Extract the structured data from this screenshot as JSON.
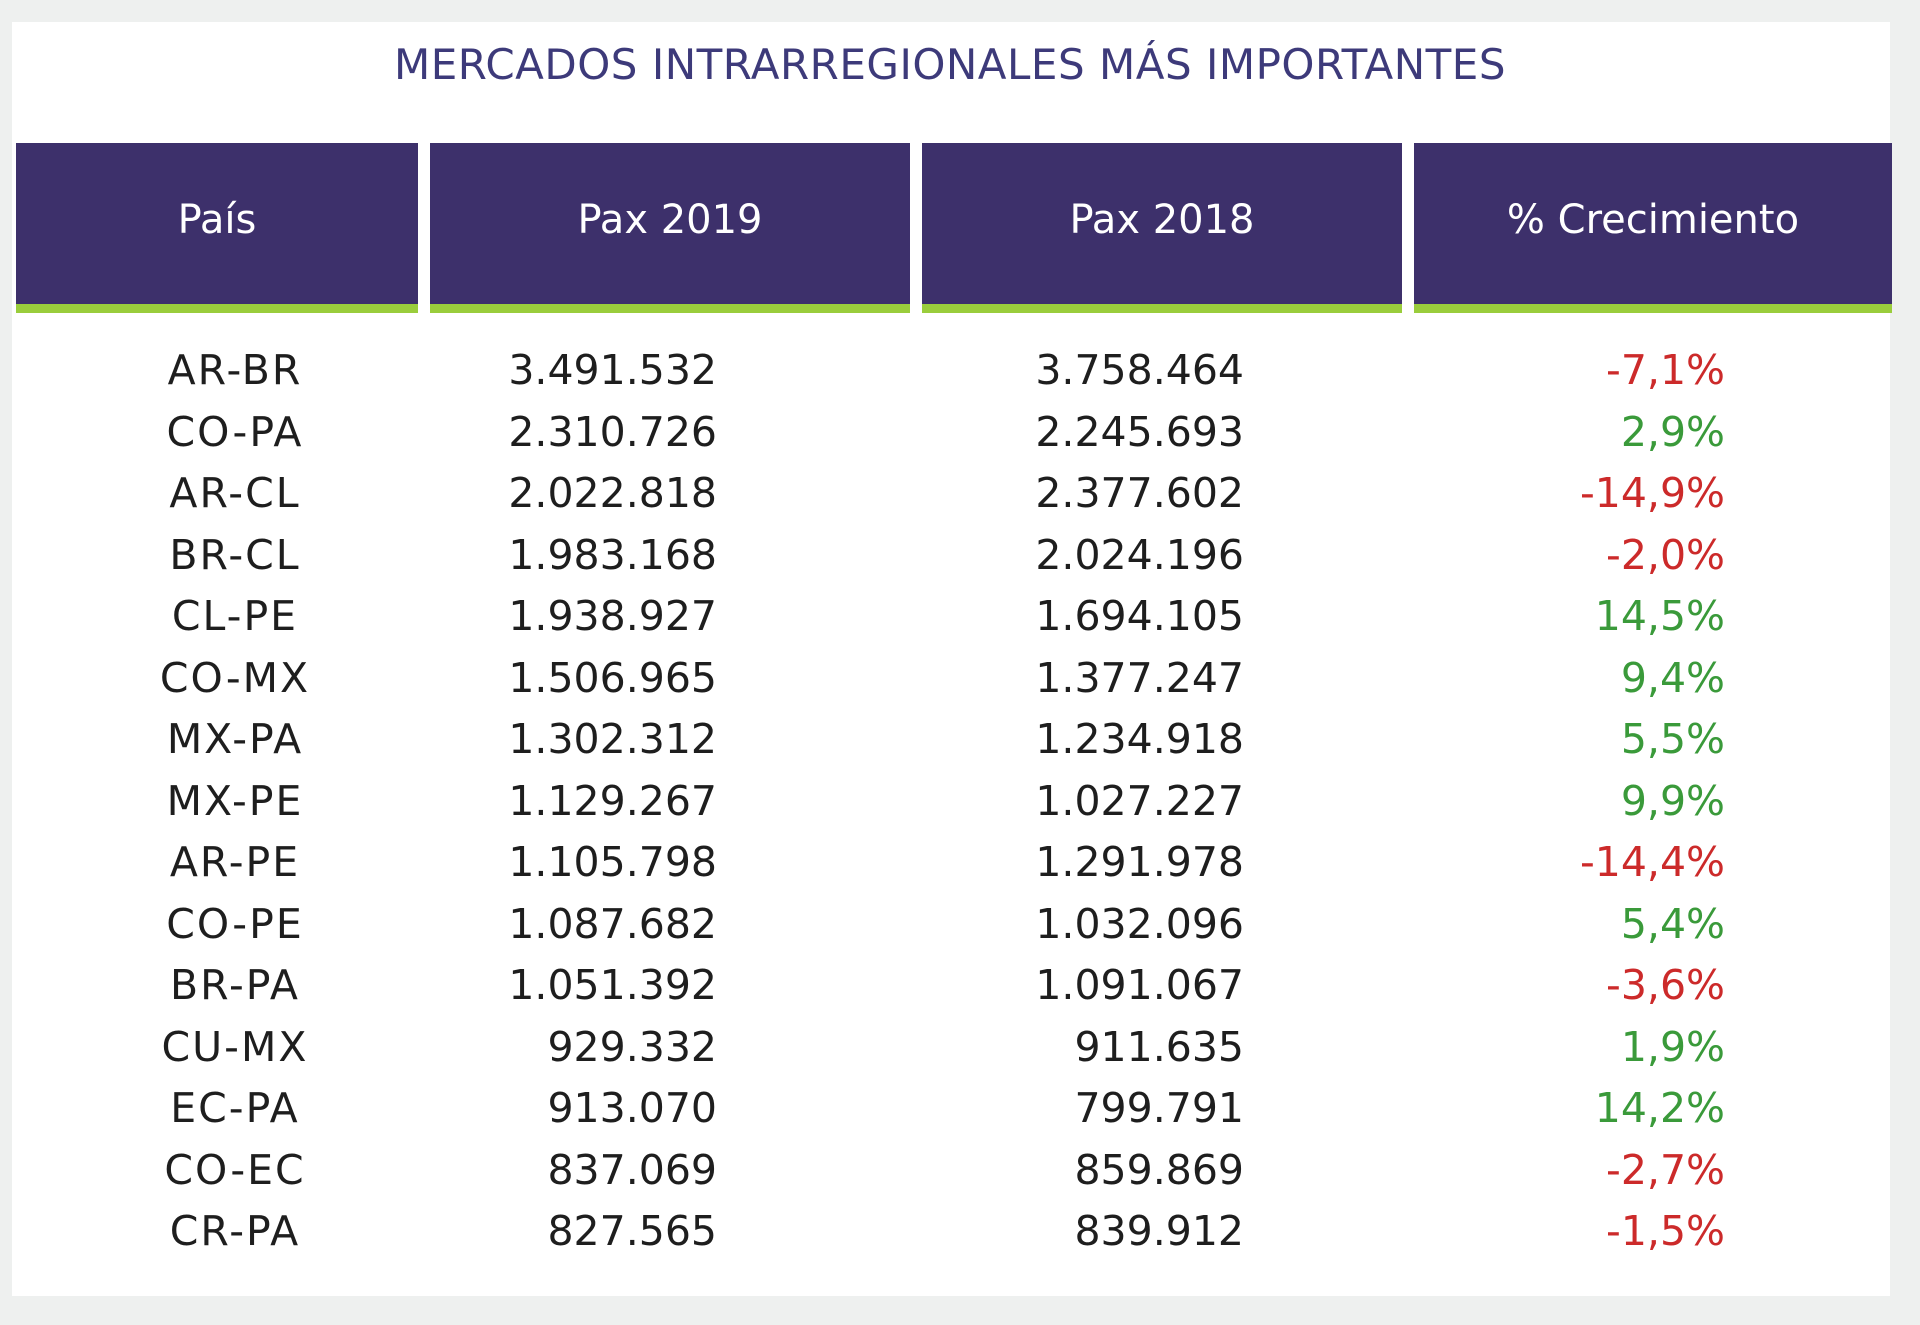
{
  "colors": {
    "header_bg": "#3d306b",
    "header_accent": "#9acd3c",
    "title": "#3d3a7a",
    "negative": "#cc2a2a",
    "positive": "#3a9a3a"
  },
  "chart_data": {
    "type": "table",
    "title": "MERCADOS INTRARREGIONALES MÁS IMPORTANTES",
    "columns": [
      "País",
      "Pax 2019",
      "Pax 2018",
      "% Crecimiento"
    ],
    "rows": [
      {
        "pais": "AR-BR",
        "pax_2019": "3.491.532",
        "pax_2018": "3.758.464",
        "crecimiento": "-7,1%",
        "growth_value": -7.1
      },
      {
        "pais": "CO-PA",
        "pax_2019": "2.310.726",
        "pax_2018": "2.245.693",
        "crecimiento": "2,9%",
        "growth_value": 2.9
      },
      {
        "pais": "AR-CL",
        "pax_2019": "2.022.818",
        "pax_2018": "2.377.602",
        "crecimiento": "-14,9%",
        "growth_value": -14.9
      },
      {
        "pais": "BR-CL",
        "pax_2019": "1.983.168",
        "pax_2018": "2.024.196",
        "crecimiento": "-2,0%",
        "growth_value": -2.0
      },
      {
        "pais": "CL-PE",
        "pax_2019": "1.938.927",
        "pax_2018": "1.694.105",
        "crecimiento": "14,5%",
        "growth_value": 14.5
      },
      {
        "pais": "CO-MX",
        "pax_2019": "1.506.965",
        "pax_2018": "1.377.247",
        "crecimiento": "9,4%",
        "growth_value": 9.4
      },
      {
        "pais": "MX-PA",
        "pax_2019": "1.302.312",
        "pax_2018": "1.234.918",
        "crecimiento": "5,5%",
        "growth_value": 5.5
      },
      {
        "pais": "MX-PE",
        "pax_2019": "1.129.267",
        "pax_2018": "1.027.227",
        "crecimiento": "9,9%",
        "growth_value": 9.9
      },
      {
        "pais": "AR-PE",
        "pax_2019": "1.105.798",
        "pax_2018": "1.291.978",
        "crecimiento": "-14,4%",
        "growth_value": -14.4
      },
      {
        "pais": "CO-PE",
        "pax_2019": "1.087.682",
        "pax_2018": "1.032.096",
        "crecimiento": "5,4%",
        "growth_value": 5.4
      },
      {
        "pais": "BR-PA",
        "pax_2019": "1.051.392",
        "pax_2018": "1.091.067",
        "crecimiento": "-3,6%",
        "growth_value": -3.6
      },
      {
        "pais": "CU-MX",
        "pax_2019": "929.332",
        "pax_2018": "911.635",
        "crecimiento": "1,9%",
        "growth_value": 1.9
      },
      {
        "pais": "EC-PA",
        "pax_2019": "913.070",
        "pax_2018": "799.791",
        "crecimiento": "14,2%",
        "growth_value": 14.2
      },
      {
        "pais": "CO-EC",
        "pax_2019": "837.069",
        "pax_2018": "859.869",
        "crecimiento": "-2,7%",
        "growth_value": -2.7
      },
      {
        "pais": "CR-PA",
        "pax_2019": "827.565",
        "pax_2018": "839.912",
        "crecimiento": "-1,5%",
        "growth_value": -1.5
      }
    ]
  }
}
